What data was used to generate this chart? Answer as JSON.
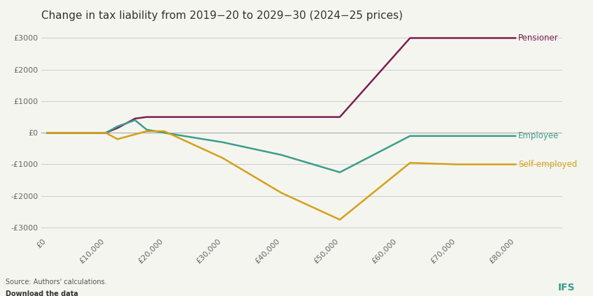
{
  "title": "Change in tax liability from 2019−20 to 2029−30 (2024−25 prices)",
  "background_color": "#f5f5f0",
  "x_ticks": [
    0,
    10000,
    20000,
    30000,
    40000,
    50000,
    60000,
    70000,
    80000
  ],
  "x_tick_labels": [
    "£0",
    "£10,000",
    "£20,000",
    "£30,000",
    "£40,000",
    "£50,000",
    "£60,000",
    "£70,000",
    "£80,000"
  ],
  "y_ticks": [
    -3000,
    -2000,
    -1000,
    0,
    1000,
    2000,
    3000
  ],
  "y_tick_labels": [
    "-£3000",
    "-£2000",
    "-£1000",
    "£0",
    "£1000",
    "£2000",
    "£3000"
  ],
  "xlim": [
    0,
    80000
  ],
  "ylim": [
    -3200,
    3300
  ],
  "series": {
    "Pensioner": {
      "color": "#7b1f4e",
      "x": [
        0,
        10000,
        12000,
        15000,
        17000,
        20000,
        50000,
        62000,
        70000,
        80000
      ],
      "y": [
        0,
        0,
        150,
        450,
        500,
        500,
        500,
        3000,
        3000,
        3000
      ]
    },
    "Employee": {
      "color": "#3a9e8c",
      "x": [
        0,
        10000,
        12000,
        15000,
        17000,
        20000,
        30000,
        40000,
        50000,
        62000,
        70000,
        80000
      ],
      "y": [
        0,
        0,
        200,
        400,
        100,
        0,
        -300,
        -700,
        -1250,
        -100,
        -100,
        -100
      ]
    },
    "Self-employed": {
      "color": "#d4a017",
      "x": [
        0,
        10000,
        12000,
        15000,
        17000,
        20000,
        30000,
        40000,
        50000,
        62000,
        70000,
        80000
      ],
      "y": [
        0,
        0,
        -200,
        -50,
        50,
        50,
        -800,
        -1900,
        -2750,
        -950,
        -1000,
        -1000
      ]
    }
  },
  "source_text": "Source: Authors' calculations.",
  "download_text": "Download the data",
  "legend_labels": [
    "Pensioner",
    "Employee",
    "Self-employed"
  ],
  "legend_colors": [
    "#7b1f4e",
    "#3a9e8c",
    "#d4a017"
  ]
}
